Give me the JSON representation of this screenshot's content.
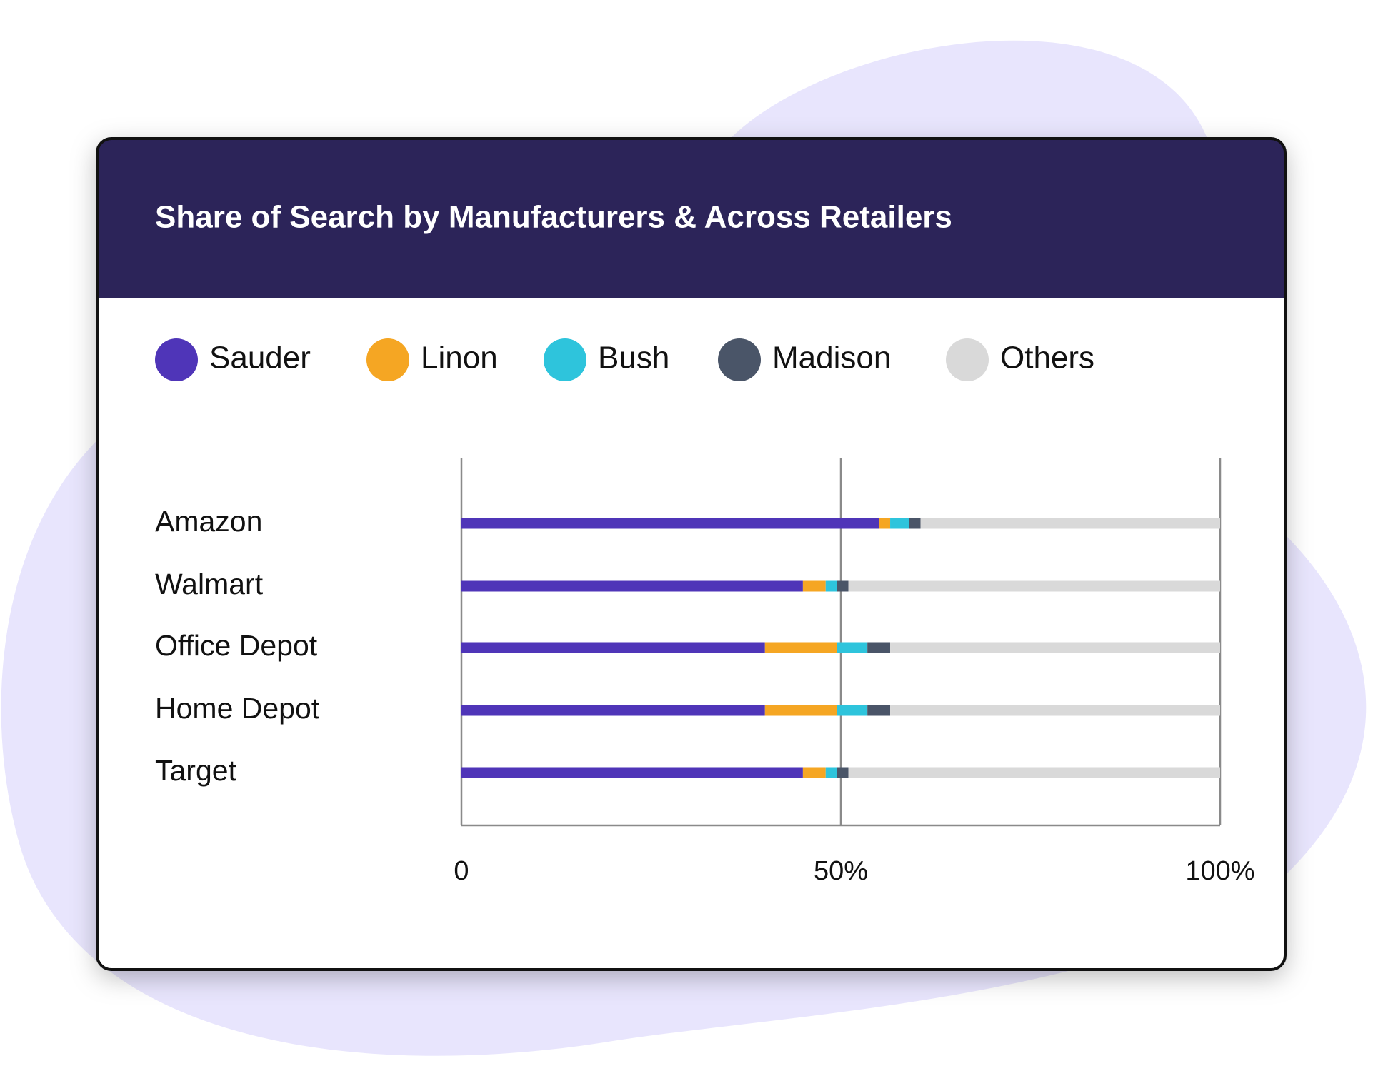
{
  "chart_data": {
    "type": "bar",
    "orientation": "horizontal",
    "stacked": true,
    "title": "Share of Search by Manufacturers & Across Retailers",
    "categories": [
      "Amazon",
      "Walmart",
      "Office Depot",
      "Home Depot",
      "Target"
    ],
    "series": [
      {
        "name": "Sauder",
        "color": "#4f35b8",
        "values": [
          55,
          45,
          40,
          40,
          45
        ]
      },
      {
        "name": "Linon",
        "color": "#f5a623",
        "values": [
          1.5,
          3,
          9.5,
          9.5,
          3
        ]
      },
      {
        "name": "Bush",
        "color": "#2ec4dc",
        "values": [
          2.5,
          1.5,
          4,
          4,
          1.5
        ]
      },
      {
        "name": "Madison",
        "color": "#4a5568",
        "values": [
          1.5,
          1.5,
          3,
          3,
          1.5
        ]
      },
      {
        "name": "Others",
        "color": "#d9d9d9",
        "values": [
          39.5,
          49,
          43.5,
          43.5,
          49
        ]
      }
    ],
    "xlim": [
      0,
      100
    ],
    "xticks": [
      0,
      {
        "value": 50,
        "label": "50%"
      },
      {
        "value": 100,
        "label": "100%"
      }
    ],
    "grid": true,
    "legend": "top"
  }
}
